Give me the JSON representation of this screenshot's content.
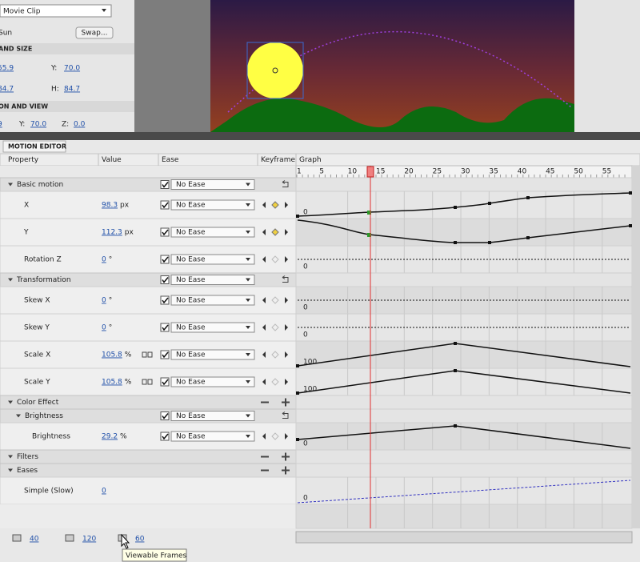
{
  "properties_panel": {
    "symbol_type": "Movie Clip",
    "instance_name": "Sun",
    "swap_button": "Swap...",
    "size_heading": "AND SIZE",
    "x_value": "55.9",
    "y_label": "Y:",
    "y_value": "70.0",
    "w_value": "84.7",
    "h_label": "H:",
    "h_value": "84.7",
    "view_heading": "ON AND VIEW",
    "view_x_value": "9",
    "view_y_label": "Y:",
    "view_y_value": "70.0",
    "view_z_label": "Z:",
    "view_z_value": "0.0"
  },
  "motion_editor": {
    "title": "MOTION EDITOR",
    "columns": [
      "Property",
      "Value",
      "Ease",
      "Keyframe",
      "Graph"
    ],
    "ruler": [
      "1",
      "5",
      "10",
      "15",
      "20",
      "25",
      "30",
      "35",
      "40",
      "45",
      "50",
      "55"
    ],
    "groups": [
      {
        "label": "Basic motion",
        "ease": "No Ease",
        "rows": [
          {
            "label": "X",
            "value": "98.3",
            "unit": "px",
            "ease": "No Ease",
            "graph_label": "0"
          },
          {
            "label": "Y",
            "value": "112.3",
            "unit": "px",
            "ease": "No Ease"
          },
          {
            "label": "Rotation Z",
            "value": "0",
            "unit": "°",
            "ease": "No Ease",
            "graph_label": "0"
          }
        ]
      },
      {
        "label": "Transformation",
        "ease": "No Ease",
        "rows": [
          {
            "label": "Skew X",
            "value": "0",
            "unit": "°",
            "ease": "No Ease",
            "graph_label": "0"
          },
          {
            "label": "Skew Y",
            "value": "0",
            "unit": "°",
            "ease": "No Ease",
            "graph_label": "0"
          },
          {
            "label": "Scale X",
            "value": "105.8",
            "unit": "%",
            "ease": "No Ease",
            "graph_label": "100"
          },
          {
            "label": "Scale Y",
            "value": "105.8",
            "unit": "%",
            "ease": "No Ease",
            "graph_label": "100"
          }
        ]
      },
      {
        "label": "Color Effect",
        "groups": [
          {
            "label": "Brightness",
            "ease": "No Ease",
            "rows": [
              {
                "label": "Brightness",
                "value": "29.2",
                "unit": "%",
                "ease": "No Ease",
                "graph_label": "0"
              }
            ]
          }
        ]
      },
      {
        "label": "Filters"
      },
      {
        "label": "Eases",
        "rows": [
          {
            "label": "Simple (Slow)",
            "value": "0",
            "graph_label": "0"
          }
        ]
      }
    ]
  },
  "footer": {
    "zoom_levels": [
      "40",
      "120",
      "60"
    ],
    "tooltip": "Viewable Frames"
  }
}
